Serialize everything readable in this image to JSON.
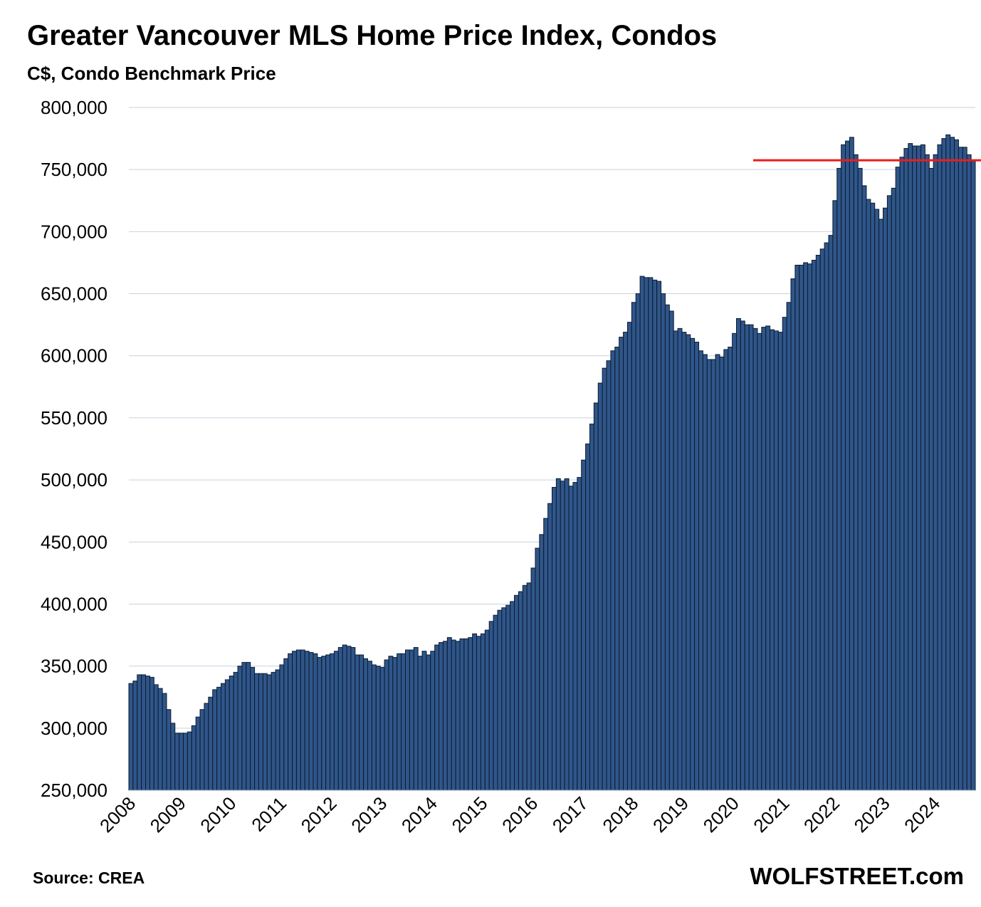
{
  "title": "Greater Vancouver MLS Home Price Index, Condos",
  "subtitle": "C$, Condo Benchmark Price",
  "source": "Source: CREA",
  "brand": "WOLFSTREET.com",
  "colors": {
    "bar_fill": "#2f5689",
    "bar_stroke": "#0c1a33",
    "gridline": "#c7d2de",
    "reference_line": "#ee1c1c"
  },
  "chart_data": {
    "type": "bar",
    "title": "Greater Vancouver MLS Home Price Index, Condos",
    "subtitle": "C$, Condo Benchmark Price",
    "ylabel": "",
    "xlabel": "",
    "ylim": [
      250000,
      800000
    ],
    "y_ticks": [
      "250,000",
      "300,000",
      "350,000",
      "400,000",
      "450,000",
      "500,000",
      "550,000",
      "600,000",
      "650,000",
      "700,000",
      "750,000",
      "800,000"
    ],
    "x_tick_labels": [
      "2008",
      "2009",
      "2010",
      "2011",
      "2012",
      "2013",
      "2014",
      "2015",
      "2016",
      "2017",
      "2018",
      "2019",
      "2020",
      "2021",
      "2022",
      "2023",
      "2024"
    ],
    "grid": "horizontal",
    "frequency": "monthly",
    "start": "2008-01",
    "reference_line": {
      "value": 757500,
      "from": "2020-06",
      "to": "2024-12"
    },
    "values": [
      336000,
      338000,
      343000,
      343000,
      342000,
      341000,
      335000,
      332000,
      328000,
      315000,
      304000,
      296000,
      296000,
      296000,
      297000,
      302000,
      309000,
      315000,
      320000,
      325000,
      331000,
      333000,
      336000,
      339000,
      342000,
      345000,
      350000,
      353000,
      353000,
      349000,
      344000,
      344000,
      344000,
      343000,
      345000,
      347000,
      351000,
      356000,
      360000,
      362000,
      363000,
      363000,
      362000,
      361000,
      360000,
      357000,
      358000,
      359000,
      360000,
      362000,
      365000,
      367000,
      366000,
      365000,
      359000,
      359000,
      356000,
      354000,
      351000,
      350000,
      349000,
      355000,
      358000,
      357000,
      360000,
      360000,
      363000,
      363000,
      365000,
      358000,
      362000,
      359000,
      362000,
      367000,
      369000,
      370000,
      373000,
      371000,
      370000,
      372000,
      372000,
      373000,
      376000,
      374000,
      376000,
      379000,
      386000,
      391000,
      395000,
      397000,
      399000,
      402000,
      407000,
      410000,
      415000,
      417000,
      429000,
      445000,
      456000,
      469000,
      481000,
      494000,
      501000,
      499000,
      501000,
      495000,
      498000,
      502000,
      516000,
      529000,
      545000,
      562000,
      578000,
      590000,
      596000,
      604000,
      607000,
      615000,
      619000,
      627000,
      643000,
      650000,
      664000,
      663000,
      663000,
      661000,
      660000,
      650000,
      641000,
      636000,
      620000,
      622000,
      619000,
      617000,
      614000,
      611000,
      604000,
      601000,
      597000,
      597000,
      601000,
      599000,
      605000,
      607000,
      618000,
      630000,
      628000,
      625000,
      625000,
      622000,
      618000,
      623000,
      624000,
      621000,
      620000,
      619000,
      631000,
      643000,
      662000,
      673000,
      673000,
      675000,
      674000,
      677000,
      681000,
      686000,
      691000,
      697000,
      725000,
      751000,
      770000,
      773000,
      776000,
      762000,
      751000,
      737000,
      726000,
      723000,
      718000,
      710000,
      719000,
      729000,
      735000,
      752000,
      760000,
      767000,
      771000,
      769000,
      769000,
      770000,
      762000,
      751000,
      762000,
      770000,
      775000,
      778000,
      776000,
      774000,
      768000,
      768000,
      762000,
      757000
    ]
  }
}
